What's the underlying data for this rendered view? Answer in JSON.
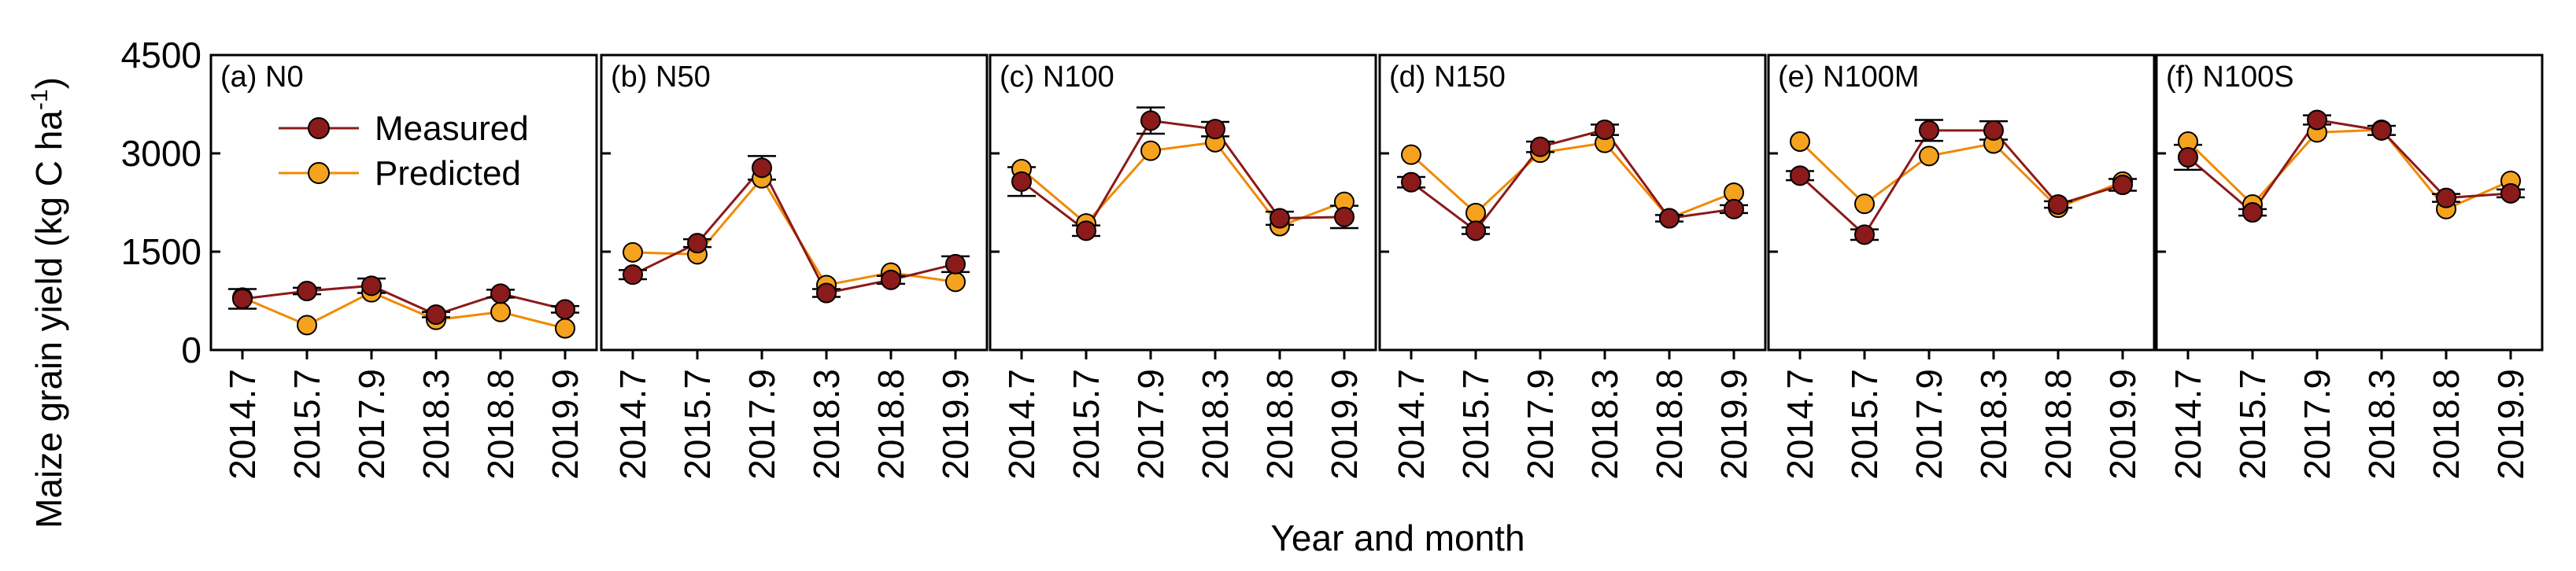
{
  "chart_data": {
    "type": "line",
    "xlabel": "Year and month",
    "ylabel_main": "Maize grain yield (kg C ha",
    "ylabel_sup": "-1",
    "ylabel_close": ")",
    "categories": [
      "2014.7",
      "2015.7",
      "2017.9",
      "2018.3",
      "2018.8",
      "2019.9"
    ],
    "ylim": [
      0,
      4500
    ],
    "yticks": [
      "0",
      "1500",
      "3000",
      "4500"
    ],
    "ytick_values": [
      0,
      1500,
      3000,
      4500
    ],
    "grid": false,
    "legend": {
      "placement": "top-left of first panel",
      "entries": [
        "Measured",
        "Predicted"
      ]
    },
    "colors": {
      "measured_fill": "#8b1a1a",
      "measured_line": "#8b1a1a",
      "predicted_fill": "#f5a21e",
      "predicted_line": "#f08a00"
    },
    "panels": [
      {
        "label": "(a) N0",
        "series": [
          {
            "name": "Measured",
            "values": [
              780,
              900,
              980,
              540,
              860,
              620
            ],
            "error": [
              150,
              50,
              110,
              40,
              60,
              50
            ]
          },
          {
            "name": "Predicted",
            "values": [
              800,
              380,
              880,
              460,
              580,
              330
            ]
          }
        ]
      },
      {
        "label": "(b) N50",
        "series": [
          {
            "name": "Measured",
            "values": [
              1150,
              1630,
              2780,
              870,
              1070,
              1310
            ],
            "error": [
              70,
              60,
              180,
              60,
              60,
              120
            ]
          },
          {
            "name": "Predicted",
            "values": [
              1490,
              1460,
              2620,
              990,
              1180,
              1040
            ]
          }
        ]
      },
      {
        "label": "(c) N100",
        "series": [
          {
            "name": "Measured",
            "values": [
              2570,
              1820,
              3500,
              3370,
              2010,
              2030
            ],
            "error": [
              220,
              80,
              200,
              110,
              100,
              170
            ]
          },
          {
            "name": "Predicted",
            "values": [
              2760,
              1930,
              3040,
              3170,
              1890,
              2260
            ]
          }
        ]
      },
      {
        "label": "(d) N150",
        "series": [
          {
            "name": "Measured",
            "values": [
              2560,
              1820,
              3100,
              3360,
              2010,
              2150
            ],
            "error": [
              80,
              50,
              80,
              80,
              50,
              60
            ]
          },
          {
            "name": "Predicted",
            "values": [
              2980,
              2090,
              3010,
              3160,
              2010,
              2400
            ]
          }
        ]
      },
      {
        "label": "(e) N100M",
        "series": [
          {
            "name": "Measured",
            "values": [
              2660,
              1760,
              3350,
              3350,
              2220,
              2520
            ],
            "error": [
              70,
              80,
              160,
              140,
              50,
              90
            ]
          },
          {
            "name": "Predicted",
            "values": [
              3180,
              2230,
              2960,
              3150,
              2170,
              2570
            ]
          }
        ]
      },
      {
        "label": "(f) N100S",
        "series": [
          {
            "name": "Measured",
            "values": [
              2940,
              2100,
              3510,
              3350,
              2320,
              2390
            ],
            "error": [
              190,
              50,
              70,
              70,
              60,
              60
            ]
          },
          {
            "name": "Predicted",
            "values": [
              3180,
              2220,
              3320,
              3360,
              2150,
              2580
            ]
          }
        ]
      }
    ]
  }
}
